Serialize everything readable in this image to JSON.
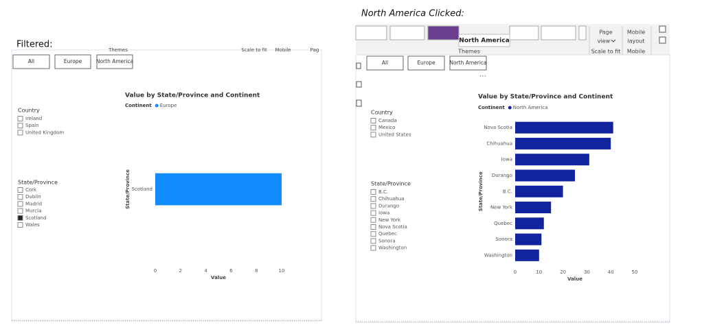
{
  "panels": [
    {
      "caption": "Filtered:",
      "ribbon": [
        "Themes",
        "Scale to fit",
        "Mobile",
        "Pag"
      ],
      "buttons": [
        "All",
        "Europe",
        "North America"
      ],
      "slicers": [
        {
          "title": "Country",
          "items": [
            "Ireland",
            "Spain",
            "United Kingdom"
          ],
          "checked": [
            false,
            false,
            false
          ]
        },
        {
          "title": "State/Province",
          "items": [
            "Cork",
            "Dublin",
            "Madrid",
            "Murcia",
            "Scotland",
            "Wales"
          ],
          "checked": [
            false,
            false,
            false,
            false,
            true,
            false
          ]
        }
      ]
    },
    {
      "caption": "North America Clicked:",
      "ribbon": [
        "Page",
        "view",
        "Mobile",
        "layout",
        "Scale to fit",
        "Mobile",
        "Themes"
      ],
      "tooltip": "North America",
      "buttons": [
        "All",
        "Europe",
        "North America"
      ],
      "slicers": [
        {
          "title": "Country",
          "items": [
            "Canada",
            "Mexico",
            "United States"
          ],
          "checked": [
            false,
            false,
            false
          ]
        },
        {
          "title": "State/Province",
          "items": [
            "B.C.",
            "Chihuahua",
            "Durango",
            "Iowa",
            "New York",
            "Nova Scotia",
            "Quebec",
            "Sonora",
            "Washington"
          ],
          "checked": [
            false,
            false,
            false,
            false,
            false,
            false,
            false,
            false,
            false
          ]
        }
      ]
    }
  ],
  "chart_data": [
    {
      "type": "bar",
      "orientation": "horizontal",
      "title": "Value by State/Province and Continent",
      "legend_title": "Continent",
      "categories": [
        "Scotland"
      ],
      "series": [
        {
          "name": "Europe",
          "color": "#118dff",
          "values": [
            10
          ]
        }
      ],
      "xlim": [
        0,
        10
      ],
      "xticks": [
        0,
        2,
        4,
        6,
        8,
        10
      ],
      "xlabel": "Value",
      "ylabel": "State/Province"
    },
    {
      "type": "bar",
      "orientation": "horizontal",
      "title": "Value by State/Province and Continent",
      "legend_title": "Continent",
      "categories": [
        "Nova Scotia",
        "Chihuahua",
        "Iowa",
        "Durango",
        "B.C.",
        "New York",
        "Quebec",
        "Sonora",
        "Washington"
      ],
      "series": [
        {
          "name": "North America",
          "color": "#12239e",
          "values": [
            41,
            40,
            31,
            25,
            20,
            15,
            12,
            11,
            10
          ]
        }
      ],
      "xlim": [
        0,
        50
      ],
      "xticks": [
        0,
        10,
        20,
        30,
        40,
        50
      ],
      "xlabel": "Value",
      "ylabel": "State/Province"
    }
  ]
}
